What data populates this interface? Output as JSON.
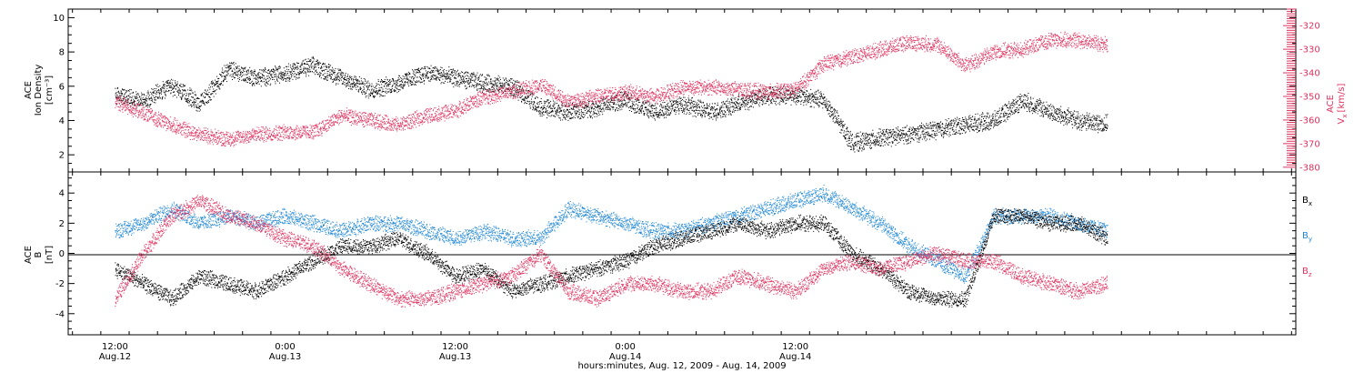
{
  "chart_data": [
    {
      "type": "scatter",
      "panel": "top",
      "ylabel_lines": [
        "ACE",
        "Ion Density",
        "[cm⁻³]"
      ],
      "ylim": [
        1,
        10.5
      ],
      "yticks": [
        2,
        4,
        6,
        8,
        10
      ],
      "y2label_lines": [
        "ACE",
        "V",
        "x",
        "[km/s]"
      ],
      "y2lim": [
        -382,
        -313
      ],
      "y2ticks": [
        -380,
        -370,
        -360,
        -350,
        -340,
        -330,
        -320
      ],
      "y2_tick_labels": [
        "-380",
        "-370",
        "-360",
        "-350",
        "-340",
        "-330",
        "-320"
      ],
      "grid": false,
      "series": [
        {
          "color": "#000000",
          "axis": "left",
          "x": [
            0,
            2,
            4,
            6,
            8,
            10,
            12,
            14,
            16,
            18,
            20,
            22,
            24,
            26,
            28,
            30,
            32,
            34,
            36,
            38,
            40,
            42,
            44,
            46,
            48,
            50,
            52,
            54,
            56,
            58,
            60,
            62,
            64,
            66,
            68,
            70
          ],
          "y": [
            5.5,
            5.2,
            6.0,
            5.0,
            7.0,
            6.5,
            6.8,
            7.2,
            6.5,
            5.8,
            6.2,
            6.8,
            6.5,
            6.2,
            6.0,
            4.8,
            4.5,
            4.8,
            5.2,
            4.5,
            5.0,
            4.5,
            5.0,
            5.5,
            5.5,
            5.2,
            2.7,
            3.0,
            3.2,
            3.5,
            3.8,
            4.0,
            5.2,
            4.5,
            4.0,
            3.8
          ]
        },
        {
          "color": "#e0325f",
          "axis": "right",
          "x": [
            0,
            2,
            4,
            6,
            8,
            10,
            12,
            14,
            16,
            18,
            20,
            22,
            24,
            26,
            28,
            30,
            32,
            34,
            36,
            38,
            40,
            42,
            44,
            46,
            48,
            50,
            52,
            54,
            56,
            58,
            60,
            62,
            64,
            66,
            68,
            70
          ],
          "y": [
            -352,
            -357,
            -362,
            -366,
            -368,
            -366,
            -365,
            -365,
            -358,
            -360,
            -362,
            -358,
            -356,
            -350,
            -348,
            -345,
            -352,
            -350,
            -348,
            -350,
            -346,
            -346,
            -347,
            -348,
            -347,
            -336,
            -333,
            -330,
            -327,
            -328,
            -337,
            -331,
            -330,
            -326,
            -326,
            -328
          ]
        }
      ]
    },
    {
      "type": "scatter",
      "panel": "bottom",
      "ylabel_lines": [
        "ACE",
        "B",
        "[nT]"
      ],
      "ylim": [
        -5.4,
        5.4
      ],
      "yticks": [
        -4,
        -2,
        0,
        2,
        4
      ],
      "zero_line": true,
      "grid": false,
      "legend_placement": "right",
      "series": [
        {
          "name": "B",
          "subscript": "x",
          "color": "#000000",
          "x": [
            0,
            2,
            4,
            6,
            8,
            10,
            12,
            14,
            16,
            18,
            20,
            22,
            24,
            26,
            28,
            30,
            32,
            34,
            36,
            38,
            40,
            42,
            44,
            46,
            48,
            50,
            52,
            54,
            56,
            58,
            60,
            62,
            64,
            66,
            68,
            70
          ],
          "y": [
            -1.0,
            -2.0,
            -3.0,
            -1.5,
            -2.0,
            -2.5,
            -1.5,
            -0.5,
            0.5,
            0.5,
            1.0,
            0.0,
            -1.5,
            -1.0,
            -2.5,
            -2.0,
            -1.5,
            -1.0,
            -0.5,
            0.5,
            1.0,
            1.5,
            2.0,
            1.5,
            2.0,
            2.0,
            0.0,
            -1.0,
            -2.5,
            -3.0,
            -3.0,
            2.5,
            2.5,
            2.0,
            2.0,
            1.0
          ]
        },
        {
          "name": "B",
          "subscript": "y",
          "color": "#1f87d6",
          "x": [
            0,
            2,
            4,
            6,
            8,
            10,
            12,
            14,
            16,
            18,
            20,
            22,
            24,
            26,
            28,
            30,
            32,
            34,
            36,
            38,
            40,
            42,
            44,
            46,
            48,
            50,
            52,
            54,
            56,
            58,
            60,
            62,
            64,
            66,
            68,
            70
          ],
          "y": [
            1.5,
            2.0,
            3.0,
            2.0,
            2.5,
            2.0,
            2.5,
            2.0,
            1.5,
            2.0,
            2.0,
            1.5,
            1.0,
            1.5,
            1.0,
            1.0,
            3.0,
            2.5,
            2.0,
            1.5,
            1.5,
            2.0,
            2.5,
            3.0,
            3.5,
            4.0,
            3.0,
            2.0,
            0.5,
            -0.5,
            -1.5,
            2.5,
            2.5,
            2.5,
            2.0,
            1.5
          ]
        },
        {
          "name": "B",
          "subscript": "z",
          "color": "#e0325f",
          "x": [
            0,
            2,
            4,
            6,
            8,
            10,
            12,
            14,
            16,
            18,
            20,
            22,
            24,
            26,
            28,
            30,
            32,
            34,
            36,
            38,
            40,
            42,
            44,
            46,
            48,
            50,
            52,
            54,
            56,
            58,
            60,
            62,
            64,
            66,
            68,
            70
          ],
          "y": [
            -3.0,
            0.0,
            2.5,
            3.5,
            2.5,
            2.0,
            1.0,
            0.5,
            -1.0,
            -2.0,
            -3.0,
            -3.0,
            -2.5,
            -2.0,
            -1.5,
            0.0,
            -2.5,
            -3.0,
            -2.0,
            -2.0,
            -2.5,
            -2.5,
            -1.5,
            -2.0,
            -2.5,
            -1.0,
            -0.5,
            -1.0,
            -0.5,
            0.0,
            -0.5,
            -0.5,
            -1.5,
            -2.0,
            -2.5,
            -2.0
          ]
        }
      ]
    }
  ],
  "x_axis": {
    "range": [
      -3.3,
      83.3
    ],
    "ticks": [
      {
        "x": 0,
        "time": "12:00",
        "date": "Aug.12"
      },
      {
        "x": 12,
        "time": "0:00",
        "date": "Aug.13"
      },
      {
        "x": 24,
        "time": "12:00",
        "date": "Aug.13"
      },
      {
        "x": 36,
        "time": "0:00",
        "date": "Aug.14"
      },
      {
        "x": 48,
        "time": "12:00",
        "date": "Aug.14"
      }
    ],
    "tick_hours_offset_base": "Aug.12 12:00",
    "title": "hours:minutes, Aug. 12, 2009 - Aug. 14, 2009"
  }
}
